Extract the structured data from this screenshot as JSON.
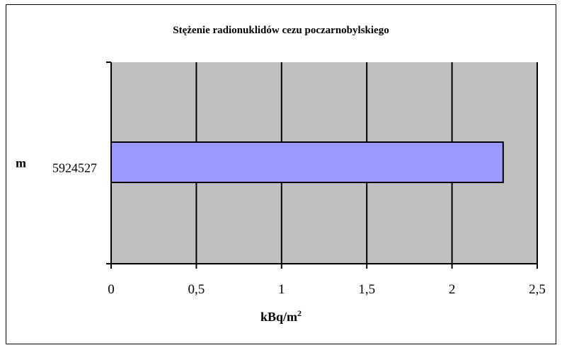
{
  "chart_data": {
    "type": "bar",
    "orientation": "horizontal",
    "title": "Stężenie radionuklidów cezu poczarnobylskiego",
    "category_prefix": "m",
    "categories": [
      "5924527"
    ],
    "values": [
      2.3
    ],
    "xlabel_main": "kBq/m",
    "xlabel_sup": "2",
    "ticks": [
      "0",
      "0,5",
      "1",
      "1,5",
      "2",
      "2,5"
    ],
    "xlim": [
      0,
      2.5
    ],
    "grid": true,
    "plot_background": "#c0c0c0",
    "bar_color": "#9999ff"
  }
}
